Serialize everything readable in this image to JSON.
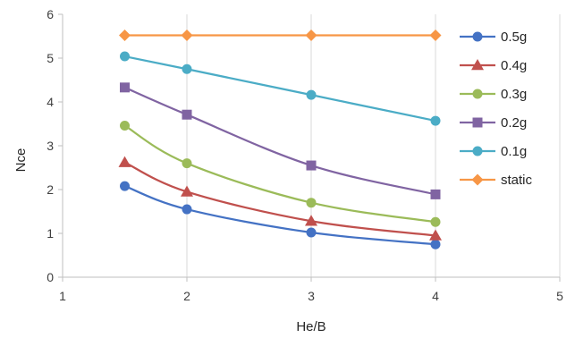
{
  "chart_data": {
    "type": "line",
    "title": "",
    "xlabel": "He/B",
    "ylabel": "Nce",
    "xlim": [
      1,
      5
    ],
    "ylim": [
      0,
      6
    ],
    "xticks": [
      "1",
      "2",
      "3",
      "4",
      "5"
    ],
    "yticks": [
      "0",
      "1",
      "2",
      "3",
      "4",
      "5",
      "6"
    ],
    "grid": "vertical",
    "legend_position": "right",
    "x": [
      1.5,
      2,
      3,
      4
    ],
    "series": [
      {
        "name": "0.5g",
        "values": [
          2.08,
          1.55,
          1.02,
          0.75
        ],
        "color": "#4472C4",
        "marker": "circle"
      },
      {
        "name": "0.4g",
        "values": [
          2.62,
          1.95,
          1.28,
          0.95
        ],
        "color": "#C0504D",
        "marker": "triangle"
      },
      {
        "name": "0.3g",
        "values": [
          3.46,
          2.6,
          1.7,
          1.26
        ],
        "color": "#9BBB59",
        "marker": "circle"
      },
      {
        "name": "0.2g",
        "values": [
          4.33,
          3.71,
          2.55,
          1.89
        ],
        "color": "#8064A2",
        "marker": "square"
      },
      {
        "name": "0.1g",
        "values": [
          5.04,
          4.75,
          4.16,
          3.57
        ],
        "color": "#4BACC6",
        "marker": "circle"
      },
      {
        "name": "static",
        "values": [
          5.52,
          5.52,
          5.52,
          5.52
        ],
        "color": "#F79646",
        "marker": "diamond"
      }
    ]
  }
}
